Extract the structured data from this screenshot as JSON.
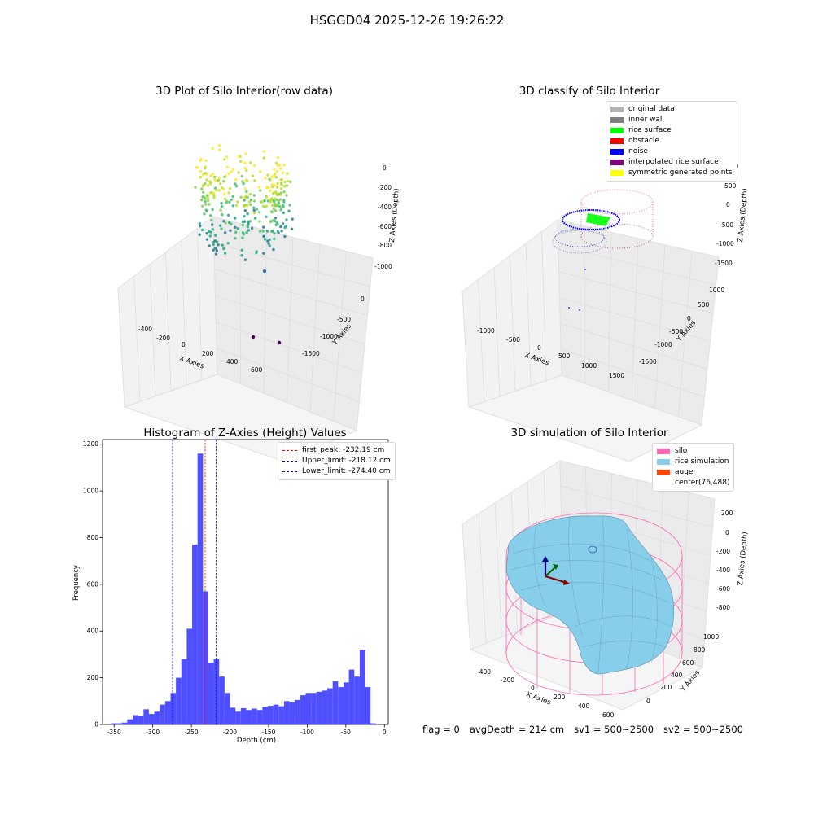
{
  "figure": {
    "title": "HSGGD04 2025-12-26 19:26:22"
  },
  "panels": {
    "raw": {
      "title": "3D Plot of Silo Interior(row data)",
      "xlabel": "X Axies",
      "ylabel": "Y Axies",
      "zlabel": "Z Axies (Depth)",
      "xticks": [
        "-400",
        "-200",
        "0",
        "200",
        "400",
        "600"
      ],
      "yticks": [
        "0",
        "-500",
        "-1000",
        "-1500"
      ],
      "zticks": [
        "0",
        "-200",
        "-400",
        "-600",
        "-800",
        "-1000"
      ]
    },
    "classify": {
      "title": "3D classify of Silo Interior",
      "xlabel": "X Axies",
      "ylabel": "Y Axies",
      "zlabel": "Z Axies (Depth)",
      "xticks": [
        "-1000",
        "-500",
        "0",
        "500",
        "1000",
        "1500"
      ],
      "yticks": [
        "1000",
        "500",
        "0",
        "-500",
        "-1000",
        "-1500"
      ],
      "zticks": [
        "1000",
        "500",
        "0",
        "-500",
        "-1000",
        "-1500"
      ],
      "legend": [
        {
          "label": "original data",
          "color": "#b3b3b3"
        },
        {
          "label": "inner wall",
          "color": "#808080"
        },
        {
          "label": "rice surface",
          "color": "#00ff00"
        },
        {
          "label": "obstacle",
          "color": "#ff0000"
        },
        {
          "label": "noise",
          "color": "#0000ff"
        },
        {
          "label": "interpolated rice surface",
          "color": "#800080"
        },
        {
          "label": "symmetric generated points",
          "color": "#ffff00"
        }
      ]
    },
    "histogram": {
      "title": "Histogram of Z-Axies (Height) Values",
      "xlabel": "Depth (cm)",
      "ylabel": "Frequency",
      "legend": [
        {
          "label": "first_peak: -232.19 cm",
          "color": "#ff0000"
        },
        {
          "label": "Upper_limit: -218.12 cm",
          "color": "#0000ff"
        },
        {
          "label": "Lower_limit: -274.40 cm",
          "color": "#0000ff"
        }
      ]
    },
    "simulation": {
      "title": "3D simulation of Silo Interior",
      "xlabel": "X Axies",
      "ylabel": "Y Axies",
      "zlabel": "Z Axies (Depth)",
      "xticks": [
        "-400",
        "-200",
        "0",
        "200",
        "400",
        "600"
      ],
      "yticks": [
        "0",
        "200",
        "400",
        "600",
        "800",
        "1000"
      ],
      "zticks": [
        "200",
        "0",
        "-200",
        "-400",
        "-600",
        "-800"
      ],
      "legend": [
        {
          "label": "silo",
          "color": "#ff69b4"
        },
        {
          "label": "rice simulation",
          "color": "#87ceeb"
        },
        {
          "label": "auger",
          "color": "#ff4500"
        },
        {
          "label": "center(76,488)",
          "color": "#ffffff"
        }
      ]
    }
  },
  "footer": {
    "flag": "flag = 0",
    "avg_depth": "avgDepth = 214 cm",
    "sv1": "sv1 = 500~2500",
    "sv2": "sv2 = 500~2500"
  },
  "chart_data": {
    "type": "bar",
    "title": "Histogram of Z-Axies (Height) Values",
    "xlabel": "Depth (cm)",
    "ylabel": "Frequency",
    "xlim": [
      -365,
      5
    ],
    "ylim": [
      0,
      1220
    ],
    "xticks": [
      -350,
      -300,
      -250,
      -200,
      -150,
      -100,
      -50,
      0
    ],
    "yticks": [
      0,
      200,
      400,
      600,
      800,
      1000,
      1200
    ],
    "bin_width": 7.0,
    "bin_starts": [
      -354,
      -347,
      -340,
      -333,
      -326,
      -319,
      -312,
      -305,
      -298,
      -291,
      -284,
      -277,
      -270,
      -263,
      -256,
      -249,
      -242,
      -235,
      -228,
      -221,
      -214,
      -207,
      -200,
      -193,
      -186,
      -179,
      -172,
      -165,
      -158,
      -151,
      -144,
      -137,
      -130,
      -123,
      -116,
      -109,
      -102,
      -95,
      -88,
      -81,
      -74,
      -67,
      -60,
      -53,
      -46,
      -39,
      -32,
      -25,
      -18,
      -11,
      -4
    ],
    "values": [
      5,
      5,
      8,
      22,
      40,
      35,
      65,
      45,
      55,
      85,
      100,
      135,
      200,
      280,
      410,
      770,
      1160,
      570,
      265,
      280,
      205,
      135,
      72,
      55,
      70,
      62,
      68,
      62,
      75,
      80,
      85,
      78,
      100,
      95,
      105,
      125,
      135,
      135,
      140,
      145,
      155,
      185,
      160,
      180,
      235,
      205,
      320,
      160,
      5,
      0,
      0
    ],
    "lines": [
      {
        "name": "first_peak",
        "x": -232.19,
        "color": "#ff0000"
      },
      {
        "name": "Upper_limit",
        "x": -218.12,
        "color": "#0000ff"
      },
      {
        "name": "Lower_limit",
        "x": -274.4,
        "color": "#0000ff"
      }
    ],
    "bar_color": "#4f4fff"
  }
}
